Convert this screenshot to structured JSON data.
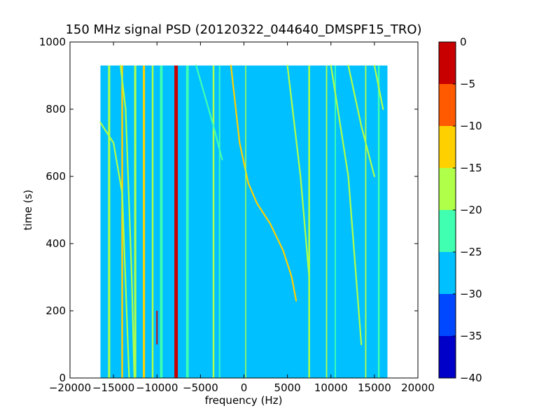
{
  "chart_data": {
    "type": "heatmap",
    "title": "150 MHz signal PSD (20120322_044640_DMSPF15_TRO)",
    "xlabel": "frequency (Hz)",
    "ylabel": "time (s)",
    "xlim": [
      -20000,
      20000
    ],
    "ylim": [
      0,
      1000
    ],
    "x_ticks": [
      -20000,
      -15000,
      -10000,
      -5000,
      0,
      5000,
      10000,
      15000,
      20000
    ],
    "y_ticks": [
      0,
      200,
      400,
      600,
      800,
      1000
    ],
    "data_extent": {
      "x": [
        -16500,
        16500
      ],
      "y": [
        0,
        930
      ]
    },
    "background_level": -27.5,
    "colorbar": {
      "levels": [
        -40,
        -35,
        -30,
        -25,
        -20,
        -15,
        -10,
        -5,
        0
      ],
      "colors": [
        "#0000c8",
        "#0048ff",
        "#00c0ff",
        "#40ffb0",
        "#b0ff48",
        "#ffd000",
        "#ff5a00",
        "#c80000"
      ]
    },
    "features": [
      {
        "name": "carrier line",
        "kind": "vertical",
        "x": -7800,
        "level": -2,
        "width_hz": 400
      },
      {
        "name": "secondary line",
        "kind": "vertical",
        "x": -10000,
        "level": -3,
        "width_hz": 150,
        "y_range": [
          100,
          200
        ]
      },
      {
        "name": "doppler trace",
        "kind": "curve",
        "level": -12,
        "points": [
          [
            -1500,
            930
          ],
          [
            -500,
            700
          ],
          [
            500,
            580
          ],
          [
            1500,
            520
          ],
          [
            3000,
            460
          ],
          [
            4500,
            380
          ],
          [
            5500,
            300
          ],
          [
            6000,
            230
          ]
        ]
      },
      {
        "name": "line -15500",
        "kind": "vertical",
        "x": -15500,
        "level": -18,
        "width_hz": 250
      },
      {
        "name": "line -14000",
        "kind": "vertical",
        "x": -14000,
        "level": -12,
        "width_hz": 200
      },
      {
        "name": "line -12500",
        "kind": "vertical",
        "x": -12500,
        "level": -17,
        "width_hz": 250
      },
      {
        "name": "line -11500",
        "kind": "vertical",
        "x": -11500,
        "level": -13,
        "width_hz": 250
      },
      {
        "name": "line -10500",
        "kind": "vertical",
        "x": -10500,
        "level": -17,
        "width_hz": 200
      },
      {
        "name": "line -9500",
        "kind": "vertical",
        "x": -9500,
        "level": -22,
        "width_hz": 300
      },
      {
        "name": "line -6500",
        "kind": "vertical",
        "x": -6500,
        "level": -22,
        "width_hz": 300
      },
      {
        "name": "line -3500",
        "kind": "vertical",
        "x": -3500,
        "level": -17,
        "width_hz": 200
      },
      {
        "name": "line -2800",
        "kind": "vertical",
        "x": -2800,
        "level": -22,
        "width_hz": 150
      },
      {
        "name": "line 200",
        "kind": "vertical",
        "x": 200,
        "level": -18,
        "width_hz": 120
      },
      {
        "name": "line 7500",
        "kind": "vertical",
        "x": 7500,
        "level": -17,
        "width_hz": 200
      },
      {
        "name": "line 9500",
        "kind": "vertical",
        "x": 9500,
        "level": -18,
        "width_hz": 150
      },
      {
        "name": "line 10500",
        "kind": "vertical",
        "x": 10500,
        "level": -22,
        "width_hz": 150
      },
      {
        "name": "line 14000",
        "kind": "vertical",
        "x": 14000,
        "level": -18,
        "width_hz": 150
      },
      {
        "name": "line 15500",
        "kind": "vertical",
        "x": 15500,
        "level": -22,
        "width_hz": 200
      },
      {
        "name": "diagonal 1",
        "kind": "curve",
        "level": -17,
        "points": [
          [
            -16500,
            760
          ],
          [
            -15000,
            700
          ],
          [
            -14000,
            550
          ],
          [
            -13200,
            0
          ]
        ]
      },
      {
        "name": "diagonal 2",
        "kind": "curve",
        "level": -17,
        "points": [
          [
            -14200,
            930
          ],
          [
            -13600,
            800
          ],
          [
            -12900,
            300
          ],
          [
            -12600,
            0
          ]
        ]
      },
      {
        "name": "diagonal 3",
        "kind": "curve",
        "level": -17,
        "points": [
          [
            5000,
            930
          ],
          [
            6500,
            600
          ],
          [
            7500,
            300
          ]
        ]
      },
      {
        "name": "diagonal 4",
        "kind": "curve",
        "level": -17,
        "points": [
          [
            10000,
            930
          ],
          [
            12000,
            600
          ],
          [
            13500,
            100
          ]
        ]
      },
      {
        "name": "diagonal 5",
        "kind": "curve",
        "level": -18,
        "points": [
          [
            12000,
            930
          ],
          [
            13500,
            750
          ],
          [
            15000,
            600
          ]
        ]
      },
      {
        "name": "diagonal 6",
        "kind": "curve",
        "level": -17,
        "points": [
          [
            15000,
            930
          ],
          [
            16000,
            800
          ]
        ]
      },
      {
        "name": "diagonal 7",
        "kind": "curve",
        "level": -22,
        "points": [
          [
            -5500,
            930
          ],
          [
            -3500,
            750
          ],
          [
            -2500,
            650
          ]
        ]
      }
    ]
  }
}
